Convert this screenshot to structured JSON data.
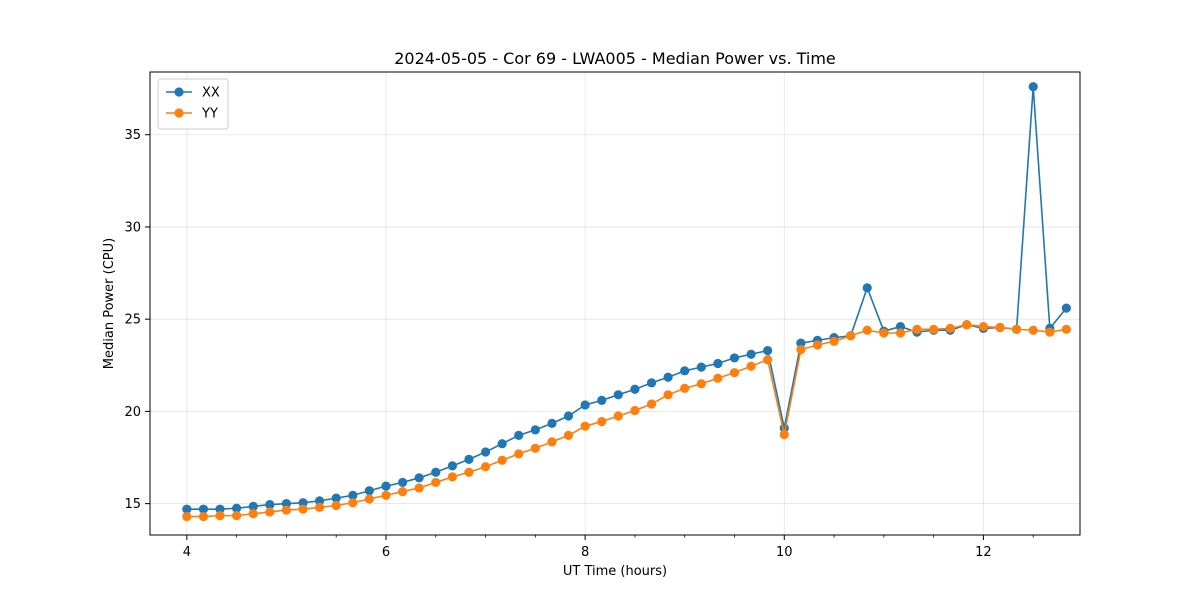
{
  "chart_data": {
    "type": "line",
    "title": "2024-05-05 - Cor 69 - LWA005 - Median Power vs. Time",
    "xlabel": "UT Time (hours)",
    "ylabel": "Median Power (CPU)",
    "xlim": [
      3.63,
      12.97
    ],
    "ylim": [
      13.3,
      38.4
    ],
    "xticks": [
      4,
      6,
      8,
      10,
      12
    ],
    "yticks": [
      15,
      20,
      25,
      30,
      35
    ],
    "grid": true,
    "legend_position": "top-left",
    "x": [
      4.0,
      4.167,
      4.333,
      4.5,
      4.667,
      4.833,
      5.0,
      5.167,
      5.333,
      5.5,
      5.667,
      5.833,
      6.0,
      6.167,
      6.333,
      6.5,
      6.667,
      6.833,
      7.0,
      7.167,
      7.333,
      7.5,
      7.667,
      7.833,
      8.0,
      8.167,
      8.333,
      8.5,
      8.667,
      8.833,
      9.0,
      9.167,
      9.333,
      9.5,
      9.667,
      9.833,
      10.0,
      10.167,
      10.333,
      10.5,
      10.667,
      10.833,
      11.0,
      11.167,
      11.333,
      11.5,
      11.667,
      11.833,
      12.0,
      12.167,
      12.333,
      12.5,
      12.667,
      12.833
    ],
    "series": [
      {
        "name": "XX",
        "color": "#1f77b4",
        "values": [
          14.7,
          14.7,
          14.7,
          14.75,
          14.85,
          14.95,
          15.0,
          15.05,
          15.15,
          15.3,
          15.45,
          15.7,
          15.95,
          16.15,
          16.4,
          16.7,
          17.05,
          17.4,
          17.8,
          18.25,
          18.7,
          19.0,
          19.35,
          19.75,
          20.35,
          20.6,
          20.9,
          21.2,
          21.55,
          21.85,
          22.2,
          22.4,
          22.6,
          22.9,
          23.1,
          23.3,
          19.1,
          23.7,
          23.85,
          24.0,
          24.1,
          26.7,
          24.35,
          24.6,
          24.3,
          24.4,
          24.4,
          24.7,
          24.5,
          24.55,
          24.45,
          37.6,
          24.5,
          25.6
        ]
      },
      {
        "name": "YY",
        "color": "#ff7f0e",
        "values": [
          14.3,
          14.3,
          14.35,
          14.35,
          14.45,
          14.55,
          14.65,
          14.7,
          14.8,
          14.9,
          15.05,
          15.25,
          15.45,
          15.65,
          15.85,
          16.15,
          16.45,
          16.7,
          17.0,
          17.35,
          17.7,
          18.0,
          18.35,
          18.7,
          19.2,
          19.45,
          19.75,
          20.05,
          20.4,
          20.9,
          21.25,
          21.5,
          21.8,
          22.1,
          22.45,
          22.8,
          18.75,
          23.35,
          23.6,
          23.8,
          24.1,
          24.4,
          24.25,
          24.25,
          24.45,
          24.45,
          24.5,
          24.7,
          24.6,
          24.55,
          24.45,
          24.4,
          24.3,
          24.45
        ]
      }
    ]
  }
}
